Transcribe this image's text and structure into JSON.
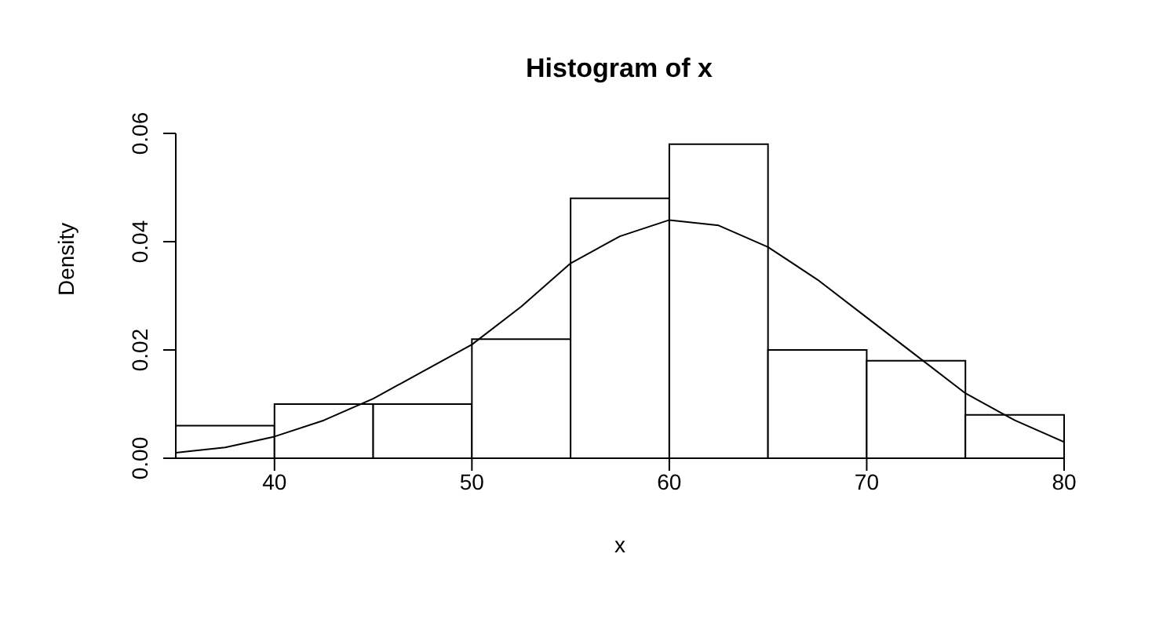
{
  "chart_data": {
    "type": "histogram",
    "title": "Histogram of x",
    "xlabel": "x",
    "ylabel": "Density",
    "bins": [
      35,
      40,
      45,
      50,
      55,
      60,
      65,
      70,
      75,
      80
    ],
    "values": [
      0.006,
      0.01,
      0.01,
      0.022,
      0.048,
      0.058,
      0.02,
      0.018,
      0.008
    ],
    "color": "#ffffff",
    "series": [
      {
        "type": "line",
        "color": "#000000",
        "x": [
          35,
          37.5,
          40,
          42.5,
          45,
          47.5,
          50,
          52.5,
          55,
          57.5,
          60,
          62.5,
          65,
          67.5,
          70,
          72.5,
          75,
          77.5,
          80
        ],
        "values": [
          0.001,
          0.002,
          0.004,
          0.007,
          0.011,
          0.016,
          0.021,
          0.028,
          0.036,
          0.041,
          0.044,
          0.043,
          0.039,
          0.033,
          0.026,
          0.019,
          0.012,
          0.007,
          0.003
        ]
      }
    ],
    "xlim": [
      35,
      80
    ],
    "xticks": [
      40,
      50,
      60,
      70,
      80
    ],
    "ylim": [
      0,
      0.06
    ],
    "yticks": [
      {
        "value": 0,
        "label": "0.00"
      },
      {
        "value": 0.02,
        "label": "0.02"
      },
      {
        "value": 0.04,
        "label": "0.04"
      },
      {
        "value": 0.06,
        "label": "0.06"
      }
    ],
    "grid": false
  }
}
